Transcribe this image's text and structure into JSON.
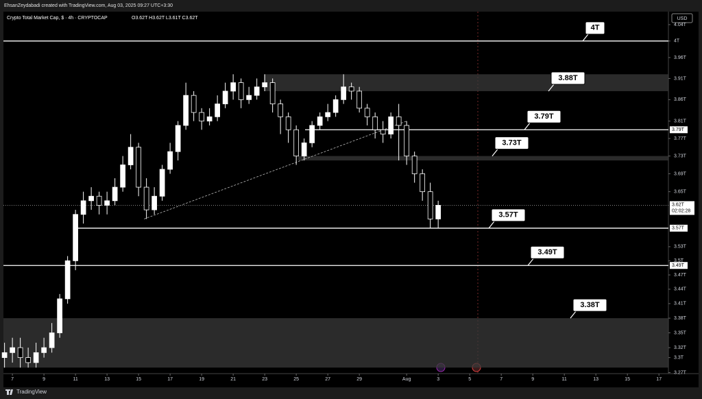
{
  "header": "EhsanZeydabadi created with TradingView.com, Aug 03, 2025 09:27 UTC+3:30",
  "footer": "TradingView",
  "chart_data": {
    "type": "candlestick",
    "title": "Crypto Total Market Cap, $ · 4h · CRYPTOCAP",
    "ohlc_text": "O3.62T H3.62T L3.61T C3.62T",
    "currency": "USD",
    "log_scale": true,
    "up_color": "#ffffff",
    "down_color": "#000000",
    "x": [
      6.5,
      7,
      7.5,
      8,
      8.5,
      9,
      9.5,
      10,
      10.5,
      11,
      11.5,
      12,
      12.5,
      13,
      13.5,
      14,
      14.5,
      15,
      15.5,
      16,
      16.5,
      17,
      17.5,
      18,
      18.5,
      19,
      19.5,
      20,
      20.5,
      21,
      21.5,
      22,
      22.5,
      23,
      23.5,
      24,
      24.5,
      25,
      25.5,
      26,
      26.5,
      27,
      27.5,
      28,
      28.5,
      29,
      29.5,
      30,
      30.5,
      31,
      31.5,
      32,
      32.5,
      33,
      33.5,
      34
    ],
    "open": [
      3.3,
      3.31,
      3.32,
      3.3,
      3.29,
      3.31,
      3.32,
      3.35,
      3.42,
      3.5,
      3.6,
      3.63,
      3.64,
      3.62,
      3.63,
      3.66,
      3.71,
      3.75,
      3.66,
      3.61,
      3.64,
      3.7,
      3.74,
      3.8,
      3.87,
      3.83,
      3.81,
      3.82,
      3.85,
      3.88,
      3.9,
      3.86,
      3.87,
      3.89,
      3.9,
      3.85,
      3.82,
      3.79,
      3.73,
      3.76,
      3.8,
      3.82,
      3.83,
      3.86,
      3.89,
      3.88,
      3.84,
      3.82,
      3.79,
      3.78,
      3.82,
      3.8,
      3.73,
      3.69,
      3.65,
      3.59
    ],
    "high": [
      3.33,
      3.34,
      3.34,
      3.32,
      3.33,
      3.34,
      3.37,
      3.43,
      3.51,
      3.61,
      3.65,
      3.66,
      3.65,
      3.65,
      3.68,
      3.73,
      3.78,
      3.76,
      3.68,
      3.66,
      3.71,
      3.76,
      3.81,
      3.9,
      3.88,
      3.84,
      3.84,
      3.87,
      3.9,
      3.92,
      3.91,
      3.89,
      3.91,
      3.92,
      3.91,
      3.86,
      3.83,
      3.8,
      3.77,
      3.81,
      3.83,
      3.85,
      3.87,
      3.92,
      3.9,
      3.89,
      3.85,
      3.83,
      3.81,
      3.83,
      3.85,
      3.81,
      3.74,
      3.7,
      3.67,
      3.63
    ],
    "low": [
      3.28,
      3.29,
      3.28,
      3.28,
      3.28,
      3.3,
      3.31,
      3.34,
      3.41,
      3.48,
      3.58,
      3.61,
      3.6,
      3.6,
      3.62,
      3.65,
      3.7,
      3.64,
      3.59,
      3.6,
      3.63,
      3.69,
      3.72,
      3.79,
      3.81,
      3.79,
      3.8,
      3.81,
      3.84,
      3.86,
      3.84,
      3.85,
      3.86,
      3.88,
      3.83,
      3.78,
      3.76,
      3.71,
      3.72,
      3.75,
      3.79,
      3.81,
      3.82,
      3.85,
      3.86,
      3.83,
      3.8,
      3.77,
      3.76,
      3.77,
      3.72,
      3.71,
      3.67,
      3.63,
      3.57,
      3.57
    ],
    "close": [
      3.31,
      3.32,
      3.3,
      3.29,
      3.31,
      3.32,
      3.35,
      3.42,
      3.5,
      3.6,
      3.63,
      3.64,
      3.62,
      3.63,
      3.66,
      3.71,
      3.75,
      3.66,
      3.61,
      3.64,
      3.7,
      3.74,
      3.8,
      3.87,
      3.83,
      3.81,
      3.82,
      3.85,
      3.88,
      3.9,
      3.86,
      3.87,
      3.89,
      3.9,
      3.85,
      3.82,
      3.79,
      3.73,
      3.76,
      3.8,
      3.82,
      3.83,
      3.86,
      3.89,
      3.88,
      3.84,
      3.82,
      3.79,
      3.78,
      3.82,
      3.8,
      3.73,
      3.69,
      3.65,
      3.59,
      3.62
    ],
    "xlim": [
      6.43,
      48.6
    ],
    "xticks": [
      7,
      9,
      11,
      13,
      15,
      17,
      19,
      21,
      23,
      25,
      27,
      29,
      {
        "value": 32,
        "label": "Aug"
      },
      {
        "value": 34,
        "label": "3"
      },
      {
        "value": 36,
        "label": "5"
      },
      {
        "value": 38,
        "label": "7"
      },
      {
        "value": 40,
        "label": "9"
      },
      {
        "value": 42,
        "label": "11"
      },
      {
        "value": 44,
        "label": "13"
      },
      {
        "value": 46,
        "label": "15"
      },
      {
        "value": 48,
        "label": "17"
      }
    ],
    "ylim": [
      3.268,
      4.072
    ],
    "yticks": [
      {
        "value": 4.04,
        "label": "4.04T"
      },
      {
        "value": 4,
        "label": "4T"
      },
      {
        "value": 3.96,
        "label": "3.96T"
      },
      {
        "value": 3.91,
        "label": "3.91T"
      },
      {
        "value": 3.86,
        "label": "3.86T"
      },
      {
        "value": 3.81,
        "label": "3.81T"
      },
      {
        "value": 3.77,
        "label": "3.77T"
      },
      {
        "value": 3.73,
        "label": "3.73T"
      },
      {
        "value": 3.69,
        "label": "3.69T"
      },
      {
        "value": 3.65,
        "label": "3.65T"
      },
      {
        "value": 3.53,
        "label": "3.53T"
      },
      {
        "value": 3.5,
        "label": "3.5T"
      },
      {
        "value": 3.47,
        "label": "3.47T"
      },
      {
        "value": 3.44,
        "label": "3.44T"
      },
      {
        "value": 3.41,
        "label": "3.41T"
      },
      {
        "value": 3.38,
        "label": "3.38T"
      },
      {
        "value": 3.35,
        "label": "3.35T"
      },
      {
        "value": 3.32,
        "label": "3.32T"
      },
      {
        "value": 3.3,
        "label": "3.3T"
      },
      {
        "value": 3.27,
        "label": "3.27T"
      }
    ],
    "levels": [
      4,
      3.79,
      3.57,
      3.49
    ],
    "zones": [
      {
        "low": 3.88,
        "high": 3.92
      },
      {
        "low": 3.72,
        "high": 3.73
      },
      {
        "low": 3.28,
        "high": 3.38
      }
    ],
    "trendline": {
      "x": [
        15.35,
        32
      ],
      "y": [
        3.59,
        3.81
      ]
    },
    "callouts": [
      {
        "value": 4,
        "label": "4T"
      },
      {
        "value": 3.88,
        "label": "3.88T"
      },
      {
        "value": 3.79,
        "label": "3.79T"
      },
      {
        "value": 3.73,
        "label": "3.73T"
      },
      {
        "value": 3.57,
        "label": "3.57T"
      },
      {
        "value": 3.49,
        "label": "3.49T"
      },
      {
        "value": 3.38,
        "label": "3.38T"
      }
    ],
    "price_labels": [
      {
        "value": 3.79,
        "label": "3.79T"
      },
      {
        "value": 3.57,
        "label": "3.57T"
      },
      {
        "value": 3.49,
        "label": "3.49T"
      }
    ],
    "last_price": {
      "value": 3.62,
      "label": "3.62T",
      "countdown": "02:02:28"
    }
  }
}
